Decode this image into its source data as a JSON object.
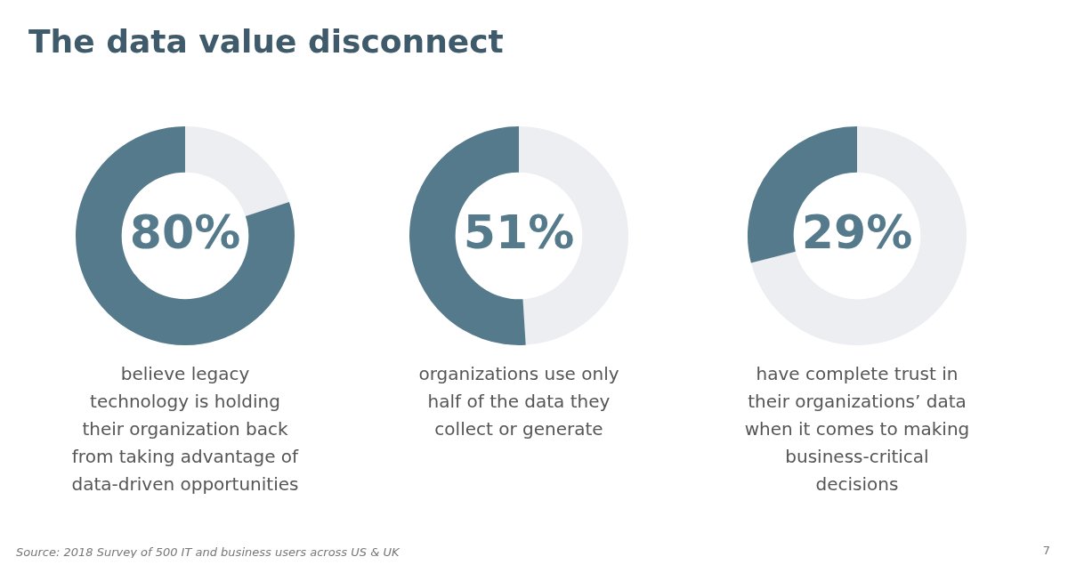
{
  "chart_data": [
    {
      "type": "donut",
      "title": "The data value disconnect",
      "categories": [
        null,
        null
      ],
      "values": [
        20,
        80
      ],
      "colors": [
        "#eceef2",
        "#557a8b"
      ],
      "value_labels": [
        null,
        "80%"
      ],
      "legend": false,
      "annotations": [
        "believe legacy technology is holding their organization back from taking advantage of data-driven opportunities"
      ]
    },
    {
      "type": "donut",
      "categories": [
        null,
        null
      ],
      "values": [
        49,
        51
      ],
      "colors": [
        "#eceef2",
        "#557a8b"
      ],
      "value_labels": [
        null,
        "51%"
      ],
      "legend": false,
      "annotations": [
        "organizations use only half of the data they collect or generate"
      ]
    },
    {
      "type": "donut",
      "categories": [
        null,
        null
      ],
      "values": [
        71,
        29
      ],
      "colors": [
        "#eceef2",
        "#557a8b"
      ],
      "value_labels": [
        null,
        "29%"
      ],
      "legend": false,
      "annotations": [
        "have complete trust in their organizations’ data when it comes to making business-critical decisions",
        "Source: 2018 Survey of 500 IT and business users across US & UK",
        "7"
      ]
    }
  ]
}
